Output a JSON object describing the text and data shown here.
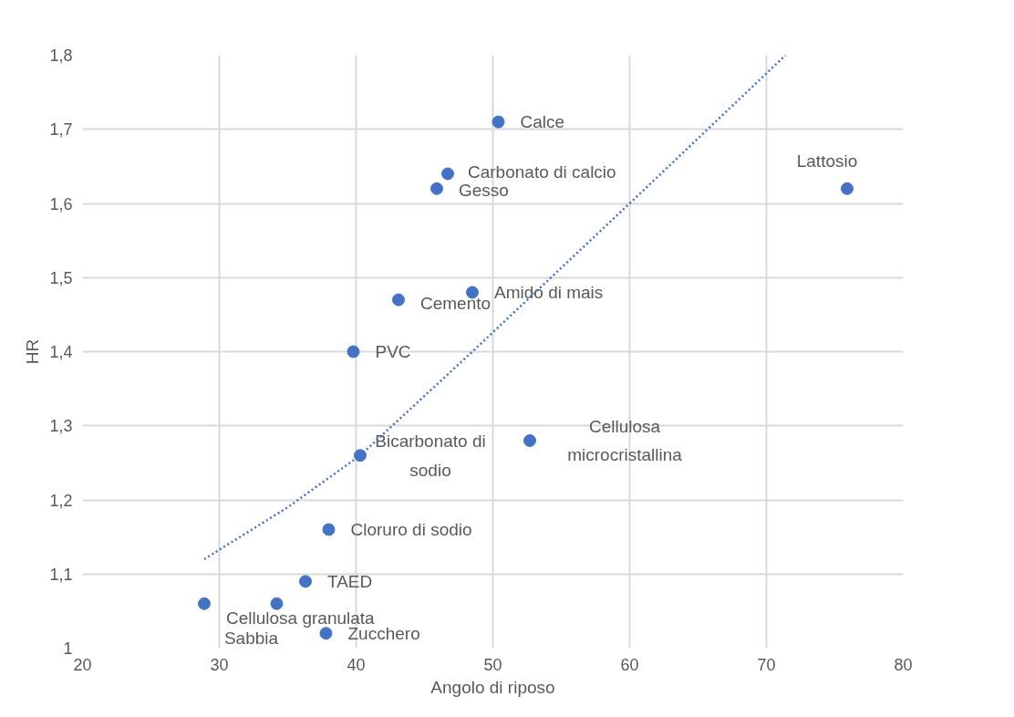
{
  "chart_data": {
    "type": "scatter",
    "xlabel": "Angolo di riposo",
    "ylabel": "HR",
    "series": [
      {
        "color": "#4472c4",
        "marker": "circle",
        "x": [
          50.4,
          46.7,
          45.9,
          75.9,
          48.5,
          43.1,
          39.8,
          52.7,
          40.3,
          38.0,
          36.3,
          28.9,
          34.2,
          37.8
        ],
        "values": [
          1.71,
          1.64,
          1.62,
          1.62,
          1.48,
          1.47,
          1.4,
          1.28,
          1.26,
          1.16,
          1.09,
          1.06,
          1.06,
          1.02
        ]
      },
      {
        "type": "line",
        "color": "#4472c4",
        "line_style": "dotted",
        "x": [
          28.9,
          35,
          40.3,
          48.5,
          60,
          71.4
        ],
        "values": [
          1.12,
          1.19,
          1.26,
          1.4,
          1.6,
          1.8
        ]
      }
    ],
    "annotations": [
      {
        "text": "Calce",
        "x": 50.4,
        "y": 1.71
      },
      {
        "text": "Carbonato di calcio",
        "x": 46.7,
        "y": 1.64
      },
      {
        "text": "Gesso",
        "x": 45.9,
        "y": 1.62
      },
      {
        "text": "Lattosio",
        "x": 75.9,
        "y": 1.62
      },
      {
        "text": "Amido di mais",
        "x": 48.5,
        "y": 1.48
      },
      {
        "text": "Cemento",
        "x": 43.1,
        "y": 1.47
      },
      {
        "text": "PVC",
        "x": 39.8,
        "y": 1.4
      },
      {
        "text": "Cellulosa\nmicrocristallina",
        "x": 52.7,
        "y": 1.28
      },
      {
        "text": "Bicarbonato di\nsodio",
        "x": 40.3,
        "y": 1.26
      },
      {
        "text": "Cloruro di sodio",
        "x": 38.0,
        "y": 1.16
      },
      {
        "text": "TAED",
        "x": 36.3,
        "y": 1.09
      },
      {
        "text": "Cellulosa granulata",
        "x": 28.9,
        "y": 1.06
      },
      {
        "text": "Sabbia",
        "x": 34.2,
        "y": 1.06
      },
      {
        "text": "Zucchero",
        "x": 37.8,
        "y": 1.02
      }
    ],
    "xlim": [
      20,
      80
    ],
    "xticks": [
      20,
      30,
      40,
      50,
      60,
      70,
      80
    ],
    "ylim": [
      1,
      1.8
    ],
    "yticks": [
      1,
      {
        "value": 1.1,
        "label": "1,1"
      },
      {
        "value": 1.2,
        "label": "1,2"
      },
      {
        "value": 1.3,
        "label": "1,3"
      },
      {
        "value": 1.4,
        "label": "1,4"
      },
      {
        "value": 1.5,
        "label": "1,5"
      },
      {
        "value": 1.6,
        "label": "1,6"
      },
      {
        "value": 1.7,
        "label": "1,7"
      },
      {
        "value": 1.8,
        "label": "1,8"
      }
    ],
    "grid": true
  }
}
